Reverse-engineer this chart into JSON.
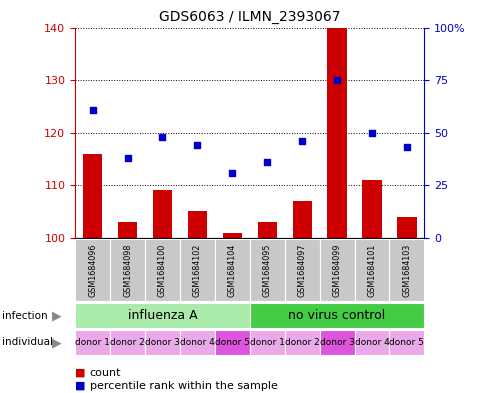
{
  "title": "GDS6063 / ILMN_2393067",
  "samples": [
    "GSM1684096",
    "GSM1684098",
    "GSM1684100",
    "GSM1684102",
    "GSM1684104",
    "GSM1684095",
    "GSM1684097",
    "GSM1684099",
    "GSM1684101",
    "GSM1684103"
  ],
  "bar_values": [
    116,
    103,
    109,
    105,
    101,
    103,
    107,
    140,
    111,
    104
  ],
  "scatter_values": [
    61,
    38,
    48,
    44,
    31,
    36,
    46,
    75,
    50,
    43
  ],
  "ylim_left": [
    100,
    140
  ],
  "yticks_left": [
    100,
    110,
    120,
    130,
    140
  ],
  "ylim_right": [
    0,
    100
  ],
  "yticks_right": [
    0,
    25,
    50,
    75,
    100
  ],
  "infection_groups": [
    {
      "label": "influenza A",
      "color": "#AAEAAA",
      "span": [
        0,
        5
      ]
    },
    {
      "label": "no virus control",
      "color": "#44CC44",
      "span": [
        5,
        10
      ]
    }
  ],
  "individuals": [
    "donor 1",
    "donor 2",
    "donor 3",
    "donor 4",
    "donor 5",
    "donor 1",
    "donor 2",
    "donor 3",
    "donor 4",
    "donor 5"
  ],
  "individual_colors": [
    "#EAAAEA",
    "#EAAAEA",
    "#EAAAEA",
    "#EAAAEA",
    "#DD55DD",
    "#EAAAEA",
    "#EAAAEA",
    "#DD55DD",
    "#EAAAEA",
    "#EAAAEA"
  ],
  "bar_color": "#CC0000",
  "scatter_color": "#0000CC",
  "bar_width": 0.55,
  "title_fontsize": 10,
  "legend_fontsize": 8,
  "axis_label_color_left": "#CC0000",
  "axis_label_color_right": "#0000CC",
  "infection_label_fontsize": 9,
  "individual_label_fontsize": 6.5,
  "sample_label_fontsize": 5.8,
  "n_samples": 10
}
